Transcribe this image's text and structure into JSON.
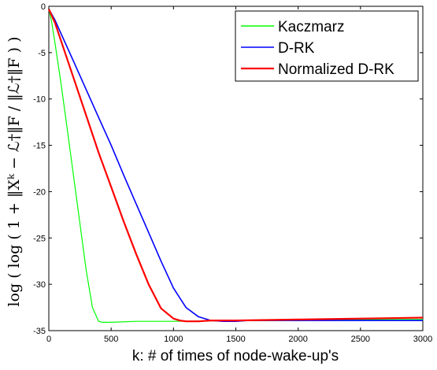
{
  "chart_data": {
    "type": "line",
    "xlabel": "k: # of times of node-wake-up's",
    "ylabel": "log ( log ( 1 + ‖Xᵏ − ℒ†‖F / ‖ℒ†‖F ) )",
    "xlim": [
      0,
      3000
    ],
    "ylim": [
      -35,
      0
    ],
    "xticks": [
      0,
      500,
      1000,
      1500,
      2000,
      2500,
      3000
    ],
    "yticks": [
      0,
      -5,
      -10,
      -15,
      -20,
      -25,
      -30,
      -35
    ],
    "grid": false,
    "legend_position": "top-right",
    "series": [
      {
        "name": "Kaczmarz",
        "color": "#00ff00",
        "x": [
          0,
          20,
          50,
          100,
          150,
          200,
          250,
          300,
          350,
          400,
          430,
          450,
          500,
          700,
          1000,
          1500,
          2000,
          2500,
          3000
        ],
        "y": [
          -0.3,
          -1.5,
          -4,
          -8.5,
          -13.5,
          -18.5,
          -23.5,
          -28.5,
          -32.5,
          -34.0,
          -34.1,
          -34.1,
          -34.1,
          -34.0,
          -34.0,
          -33.9,
          -33.9,
          -33.8,
          -33.8
        ]
      },
      {
        "name": "D-RK",
        "color": "#0000ff",
        "x": [
          0,
          50,
          100,
          200,
          300,
          400,
          500,
          600,
          700,
          800,
          900,
          1000,
          1100,
          1200,
          1300,
          1400,
          1500,
          1600,
          1800,
          2000,
          2500,
          3000
        ],
        "y": [
          -0.3,
          -1.5,
          -3.0,
          -6.0,
          -9.0,
          -12.0,
          -15.0,
          -18.2,
          -21.3,
          -24.4,
          -27.5,
          -30.4,
          -32.5,
          -33.5,
          -33.9,
          -34.0,
          -34.0,
          -33.9,
          -33.9,
          -33.9,
          -33.9,
          -33.9
        ]
      },
      {
        "name": "Normalized D-RK",
        "color": "#ff0000",
        "x": [
          0,
          50,
          100,
          200,
          300,
          400,
          500,
          600,
          700,
          800,
          900,
          1000,
          1050,
          1100,
          1150,
          1200,
          1300,
          1500,
          2000,
          2500,
          3000
        ],
        "y": [
          -0.3,
          -1.8,
          -3.8,
          -7.8,
          -11.8,
          -15.8,
          -19.5,
          -23.2,
          -26.7,
          -30.0,
          -32.6,
          -33.7,
          -33.9,
          -34.0,
          -34.0,
          -34.0,
          -33.9,
          -33.9,
          -33.8,
          -33.7,
          -33.6
        ]
      }
    ]
  }
}
